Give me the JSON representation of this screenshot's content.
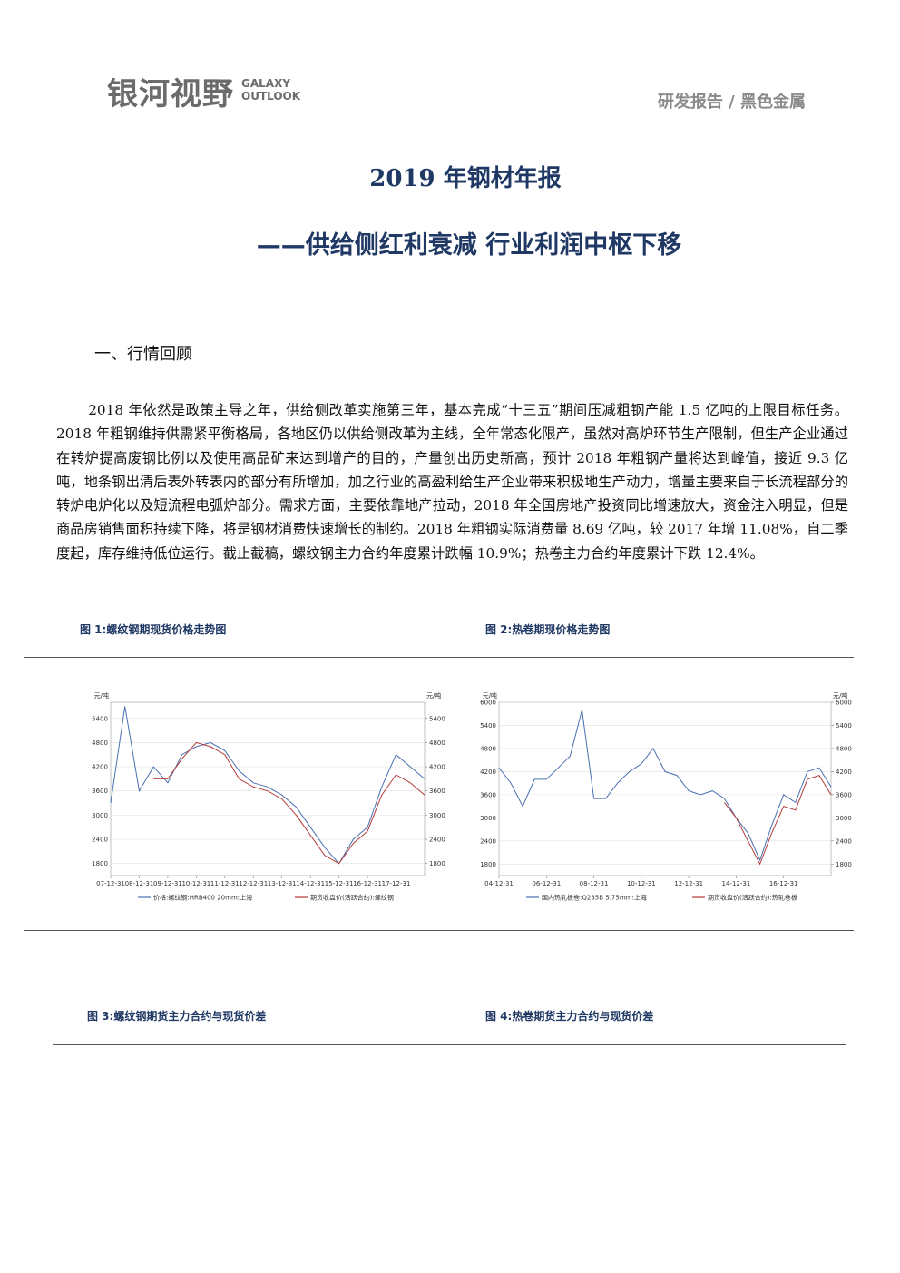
{
  "header": {
    "logo": "银河视野",
    "logo_en": [
      "GALAXY",
      "OUTLOOK"
    ],
    "category": "研发报告 / 黑色金属"
  },
  "title": "2019 年钢材年报",
  "subtitle": "——供给侧红利衰减 行业利润中枢下移",
  "section": "一、行情回顾",
  "paragraph": "2018 年依然是政策主导之年，供给侧改革实施第三年，基本完成“十三五”期间压减粗钢产能 1.5 亿吨的上限目标任务。2018 年粗钢维持供需紧平衡格局，各地区仍以供给侧改革为主线，全年常态化限产，虽然对高炉环节生产限制，但生产企业通过在转炉提高废钢比例以及使用高品矿来达到增产的目的，产量创出历史新高，预计 2018 年粗钢产量将达到峰值，接近 9.3 亿吨，地条钢出清后表外转表内的部分有所增加，加之行业的高盈利给生产企业带来积极地生产动力，增量主要来自于长流程部分的转炉电炉化以及短流程电弧炉部分。需求方面，主要依靠地产拉动，2018 年全国房地产投资同比增速放大，资金注入明显，但是商品房销售面积持续下降，将是钢材消费快速增长的制约。2018 年粗钢实际消费量 8.69 亿吨，较 2017 年增 11.08%，自二季度起，库存维持低位运行。截止截稿，螺纹钢主力合约年度累计跌幅 10.9%；热卷主力合约年度累计下跌 12.4%。",
  "figures": [
    {
      "caption": "图 1:螺纹钢期现货价格走势图",
      "chart_data": {
        "type": "line",
        "y_unit": "元/吨",
        "y2_unit": "元/吨",
        "categories": [
          "07-12-31",
          null,
          "08-12-31",
          null,
          "09-12-31",
          null,
          "10-12-31",
          null,
          "11-12-31",
          null,
          "12-12-31",
          null,
          "13-12-31",
          null,
          "14-12-31",
          null,
          "15-12-31",
          null,
          "16-12-31",
          null,
          "17-12-31",
          null,
          null
        ],
        "series": [
          {
            "name": "价格:螺纹钢:HRB400 20mm:上海",
            "color": "#4a6fb0",
            "values": [
              3300,
              5700,
              3600,
              4200,
              3800,
              4500,
              4700,
              4800,
              4600,
              4100,
              3800,
              3700,
              3500,
              3200,
              2700,
              2200,
              1800,
              2400,
              2700,
              3700,
              4500,
              4200,
              3900
            ]
          },
          {
            "name": "期货收盘价(活跃合约):螺纹钢",
            "color": "#b43a3a",
            "axis": "y2",
            "values": [
              null,
              null,
              null,
              3900,
              3900,
              4400,
              4800,
              4700,
              4500,
              3900,
              3700,
              3600,
              3400,
              3000,
              2500,
              2000,
              1800,
              2300,
              2600,
              3500,
              4000,
              3800,
              3500
            ]
          }
        ],
        "ylim": [
          1500,
          5800
        ],
        "yticks": [
          1800,
          2400,
          3000,
          3600,
          4200,
          4800,
          5400
        ],
        "y2lim": [
          1500,
          5800
        ],
        "y2ticks": [
          1800,
          2400,
          3000,
          3600,
          4200,
          4800,
          5400
        ],
        "grid": true
      }
    },
    {
      "caption": "图 2:热卷期现价格走势图",
      "chart_data": {
        "type": "line",
        "y_unit": "元/吨",
        "y2_unit": "元/吨",
        "categories": [
          "04-12-31",
          null,
          null,
          null,
          "06-12-31",
          null,
          null,
          null,
          "08-12-31",
          null,
          null,
          null,
          "10-12-31",
          null,
          null,
          null,
          "12-12-31",
          null,
          null,
          null,
          "14-12-31",
          null,
          null,
          null,
          "16-12-31",
          null,
          null,
          null,
          null
        ],
        "series": [
          {
            "name": "国内热轧板卷:Q235B 5.75mm:上海",
            "color": "#4a6fb0",
            "values": [
              4300,
              3900,
              3300,
              4000,
              4000,
              4300,
              4600,
              5800,
              3500,
              3500,
              3900,
              4200,
              4400,
              4800,
              4200,
              4100,
              3700,
              3600,
              3700,
              3500,
              3000,
              2600,
              1900,
              2800,
              3600,
              3400,
              4200,
              4300,
              3800
            ]
          },
          {
            "name": "期货收盘价(活跃合约):热轧卷板",
            "color": "#b43a3a",
            "axis": "y2",
            "values": [
              null,
              null,
              null,
              null,
              null,
              null,
              null,
              null,
              null,
              null,
              null,
              null,
              null,
              null,
              null,
              null,
              null,
              null,
              null,
              3400,
              3000,
              2400,
              1800,
              2600,
              3300,
              3200,
              4000,
              4100,
              3600
            ]
          }
        ],
        "ylim": [
          1500,
          6000
        ],
        "yticks": [
          1800,
          2400,
          3000,
          3600,
          4200,
          4800,
          5400,
          6000
        ],
        "y2lim": [
          1500,
          6000
        ],
        "y2ticks": [
          1800,
          2400,
          3000,
          3600,
          4200,
          4800,
          5400,
          6000
        ],
        "grid": true
      }
    },
    {
      "caption": "图 3:螺纹钢期货主力合约与现货价差"
    },
    {
      "caption": "图 4:热卷期货主力合约与现货价差"
    }
  ]
}
